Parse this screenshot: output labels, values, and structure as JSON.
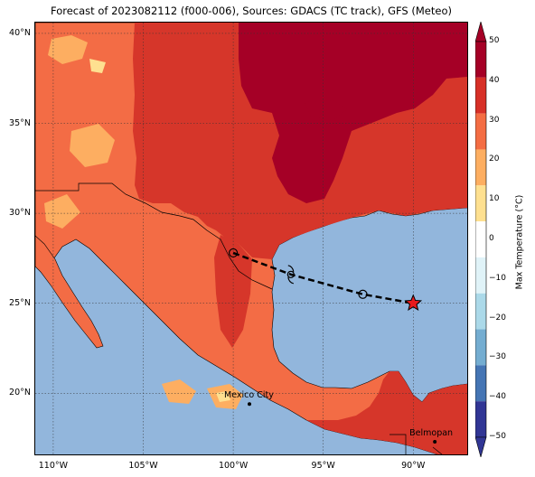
{
  "title": "Forecast of 2023082112 (f000-006), Sources: GDACS (TC track), GFS (Meteo)",
  "map": {
    "lon_range": [
      -111,
      -87
    ],
    "lat_range": [
      16.6,
      40.6
    ],
    "lat_ticks": [
      {
        "value": 40,
        "label": "40°N"
      },
      {
        "value": 35,
        "label": "35°N"
      },
      {
        "value": 30,
        "label": "30°N"
      },
      {
        "value": 25,
        "label": "25°N"
      },
      {
        "value": 20,
        "label": "20°N"
      }
    ],
    "lon_ticks": [
      {
        "value": -110,
        "label": "110°W"
      },
      {
        "value": -105,
        "label": "105°W"
      },
      {
        "value": -100,
        "label": "100°W"
      },
      {
        "value": -95,
        "label": "95°W"
      },
      {
        "value": -90,
        "label": "90°W"
      }
    ],
    "gridlines": true,
    "colors": {
      "ocean": "#92b6dc",
      "land_warm": "#f36c45",
      "land_hot": "#d6362a",
      "land_very_hot": "#a50026",
      "land_mild": "#fdae61",
      "land_cool": "#fee090"
    }
  },
  "track": {
    "points": [
      {
        "lon": -100.0,
        "lat": 27.8,
        "marker": "circle"
      },
      {
        "lon": -96.8,
        "lat": 26.6,
        "marker": "storm-symbol"
      },
      {
        "lon": -92.8,
        "lat": 25.5,
        "marker": "circle"
      },
      {
        "lon": -90.0,
        "lat": 25.0,
        "marker": "star"
      }
    ],
    "current_position_color": "#e8191c"
  },
  "cities": [
    {
      "name": "Mexico City",
      "lon": -99.1,
      "lat": 19.4
    },
    {
      "name": "Belmopan",
      "lon": -88.8,
      "lat": 17.3
    }
  ],
  "colorbar": {
    "title": "Max Temperature (°C)",
    "ticks": [
      "50",
      "40",
      "30",
      "20",
      "10",
      "0",
      "−10",
      "−20",
      "−30",
      "−40",
      "−50"
    ],
    "bands_top_to_bottom": [
      "#a50026",
      "#d73027",
      "#f46d43",
      "#fdae61",
      "#fee090",
      "#ffffff",
      "#e0f3f8",
      "#abd9e9",
      "#74add1",
      "#4575b4",
      "#313695"
    ]
  }
}
